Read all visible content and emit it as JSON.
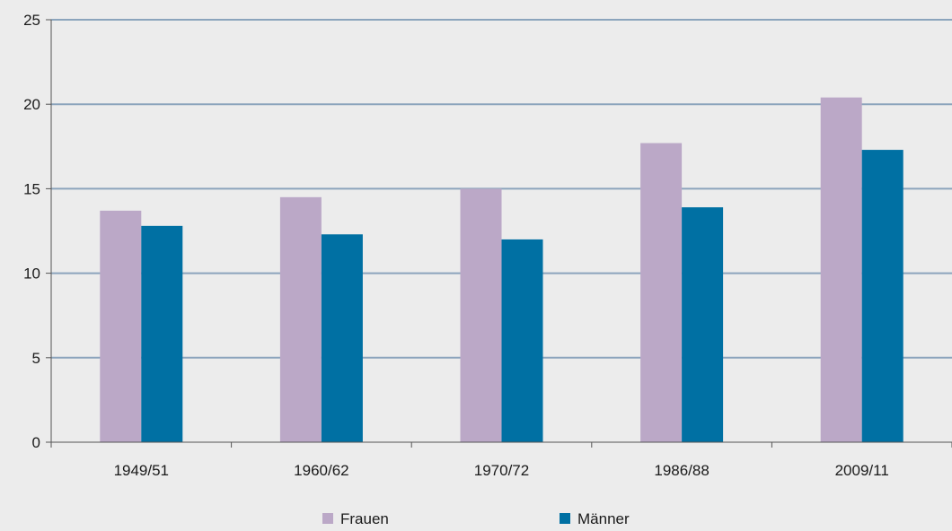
{
  "chart_data": {
    "type": "bar",
    "title": "",
    "xlabel": "",
    "ylabel": "",
    "categories": [
      "1949/51",
      "1960/62",
      "1970/72",
      "1986/88",
      "2009/11"
    ],
    "series": [
      {
        "name": "Frauen",
        "color": "#bba8c7",
        "values": [
          13.7,
          14.5,
          15.0,
          17.7,
          20.4
        ]
      },
      {
        "name": "Männer",
        "color": "#0070a3",
        "values": [
          12.8,
          12.3,
          12.0,
          13.9,
          17.3
        ]
      }
    ],
    "ylim": [
      0,
      25
    ],
    "yticks": [
      0,
      5,
      10,
      15,
      20,
      25
    ],
    "grid": true,
    "gridline_color": "#8ba4bc",
    "legend_position": "bottom-center"
  }
}
